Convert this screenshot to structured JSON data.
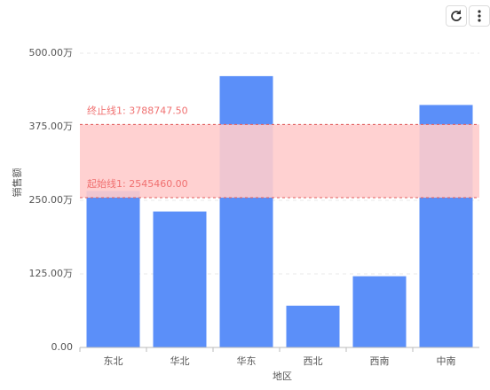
{
  "chart_data": {
    "type": "bar",
    "x_label": "地区",
    "y_label": "销售额",
    "categories": [
      "东北",
      "华北",
      "华东",
      "西北",
      "西南",
      "中南"
    ],
    "values": [
      2660000,
      2310000,
      4610000,
      710000,
      1210000,
      4120000
    ],
    "color": "#5b8ff9",
    "ylim": [
      0,
      5000000
    ],
    "yticks": [
      {
        "value": 0,
        "label": "0.00"
      },
      {
        "value": 1250000,
        "label": "125.00万"
      },
      {
        "value": 2500000,
        "label": "250.00万"
      },
      {
        "value": 3750000,
        "label": "375.00万"
      },
      {
        "value": 5000000,
        "label": "500.00万"
      }
    ],
    "grid": true,
    "band": {
      "color": "#ffcccc",
      "start": {
        "label": "起始线1: 2545460.00",
        "value": 2545460
      },
      "end": {
        "label": "终止线1: 3788747.50",
        "value": 3788747.5
      }
    }
  }
}
